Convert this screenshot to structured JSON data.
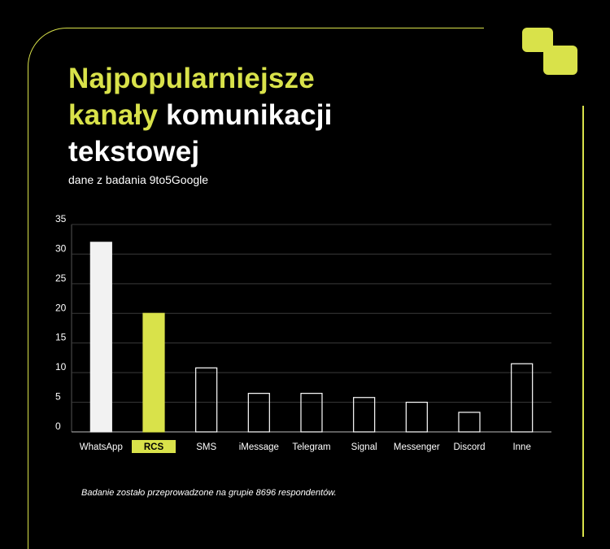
{
  "title": {
    "line1": "Najpopularniejsze",
    "line2_highlight": "kanały",
    "line2_rest": "komunikacji",
    "line3": "tekstowej"
  },
  "subtitle": "dane z badania 9to5Google",
  "footnote": "Badanie zostało przeprowadzone na grupie 8696 respondentów.",
  "colors": {
    "accent": "#d9e24a",
    "background": "#000000",
    "whatsapp_bar": "#f2f2f2",
    "outline": "#ffffff"
  },
  "chart_data": {
    "type": "bar",
    "categories": [
      "WhatsApp",
      "RCS",
      "SMS",
      "iMessage",
      "Telegram",
      "Signal",
      "Messenger",
      "Discord",
      "Inne"
    ],
    "values": [
      32,
      20,
      10.8,
      6.5,
      6.5,
      5.8,
      5,
      3.3,
      11.5
    ],
    "highlight": "RCS",
    "yticks": [
      0,
      5,
      10,
      15,
      20,
      25,
      30,
      35
    ],
    "ylim": [
      0,
      35
    ],
    "grid": true,
    "legend": "none"
  }
}
